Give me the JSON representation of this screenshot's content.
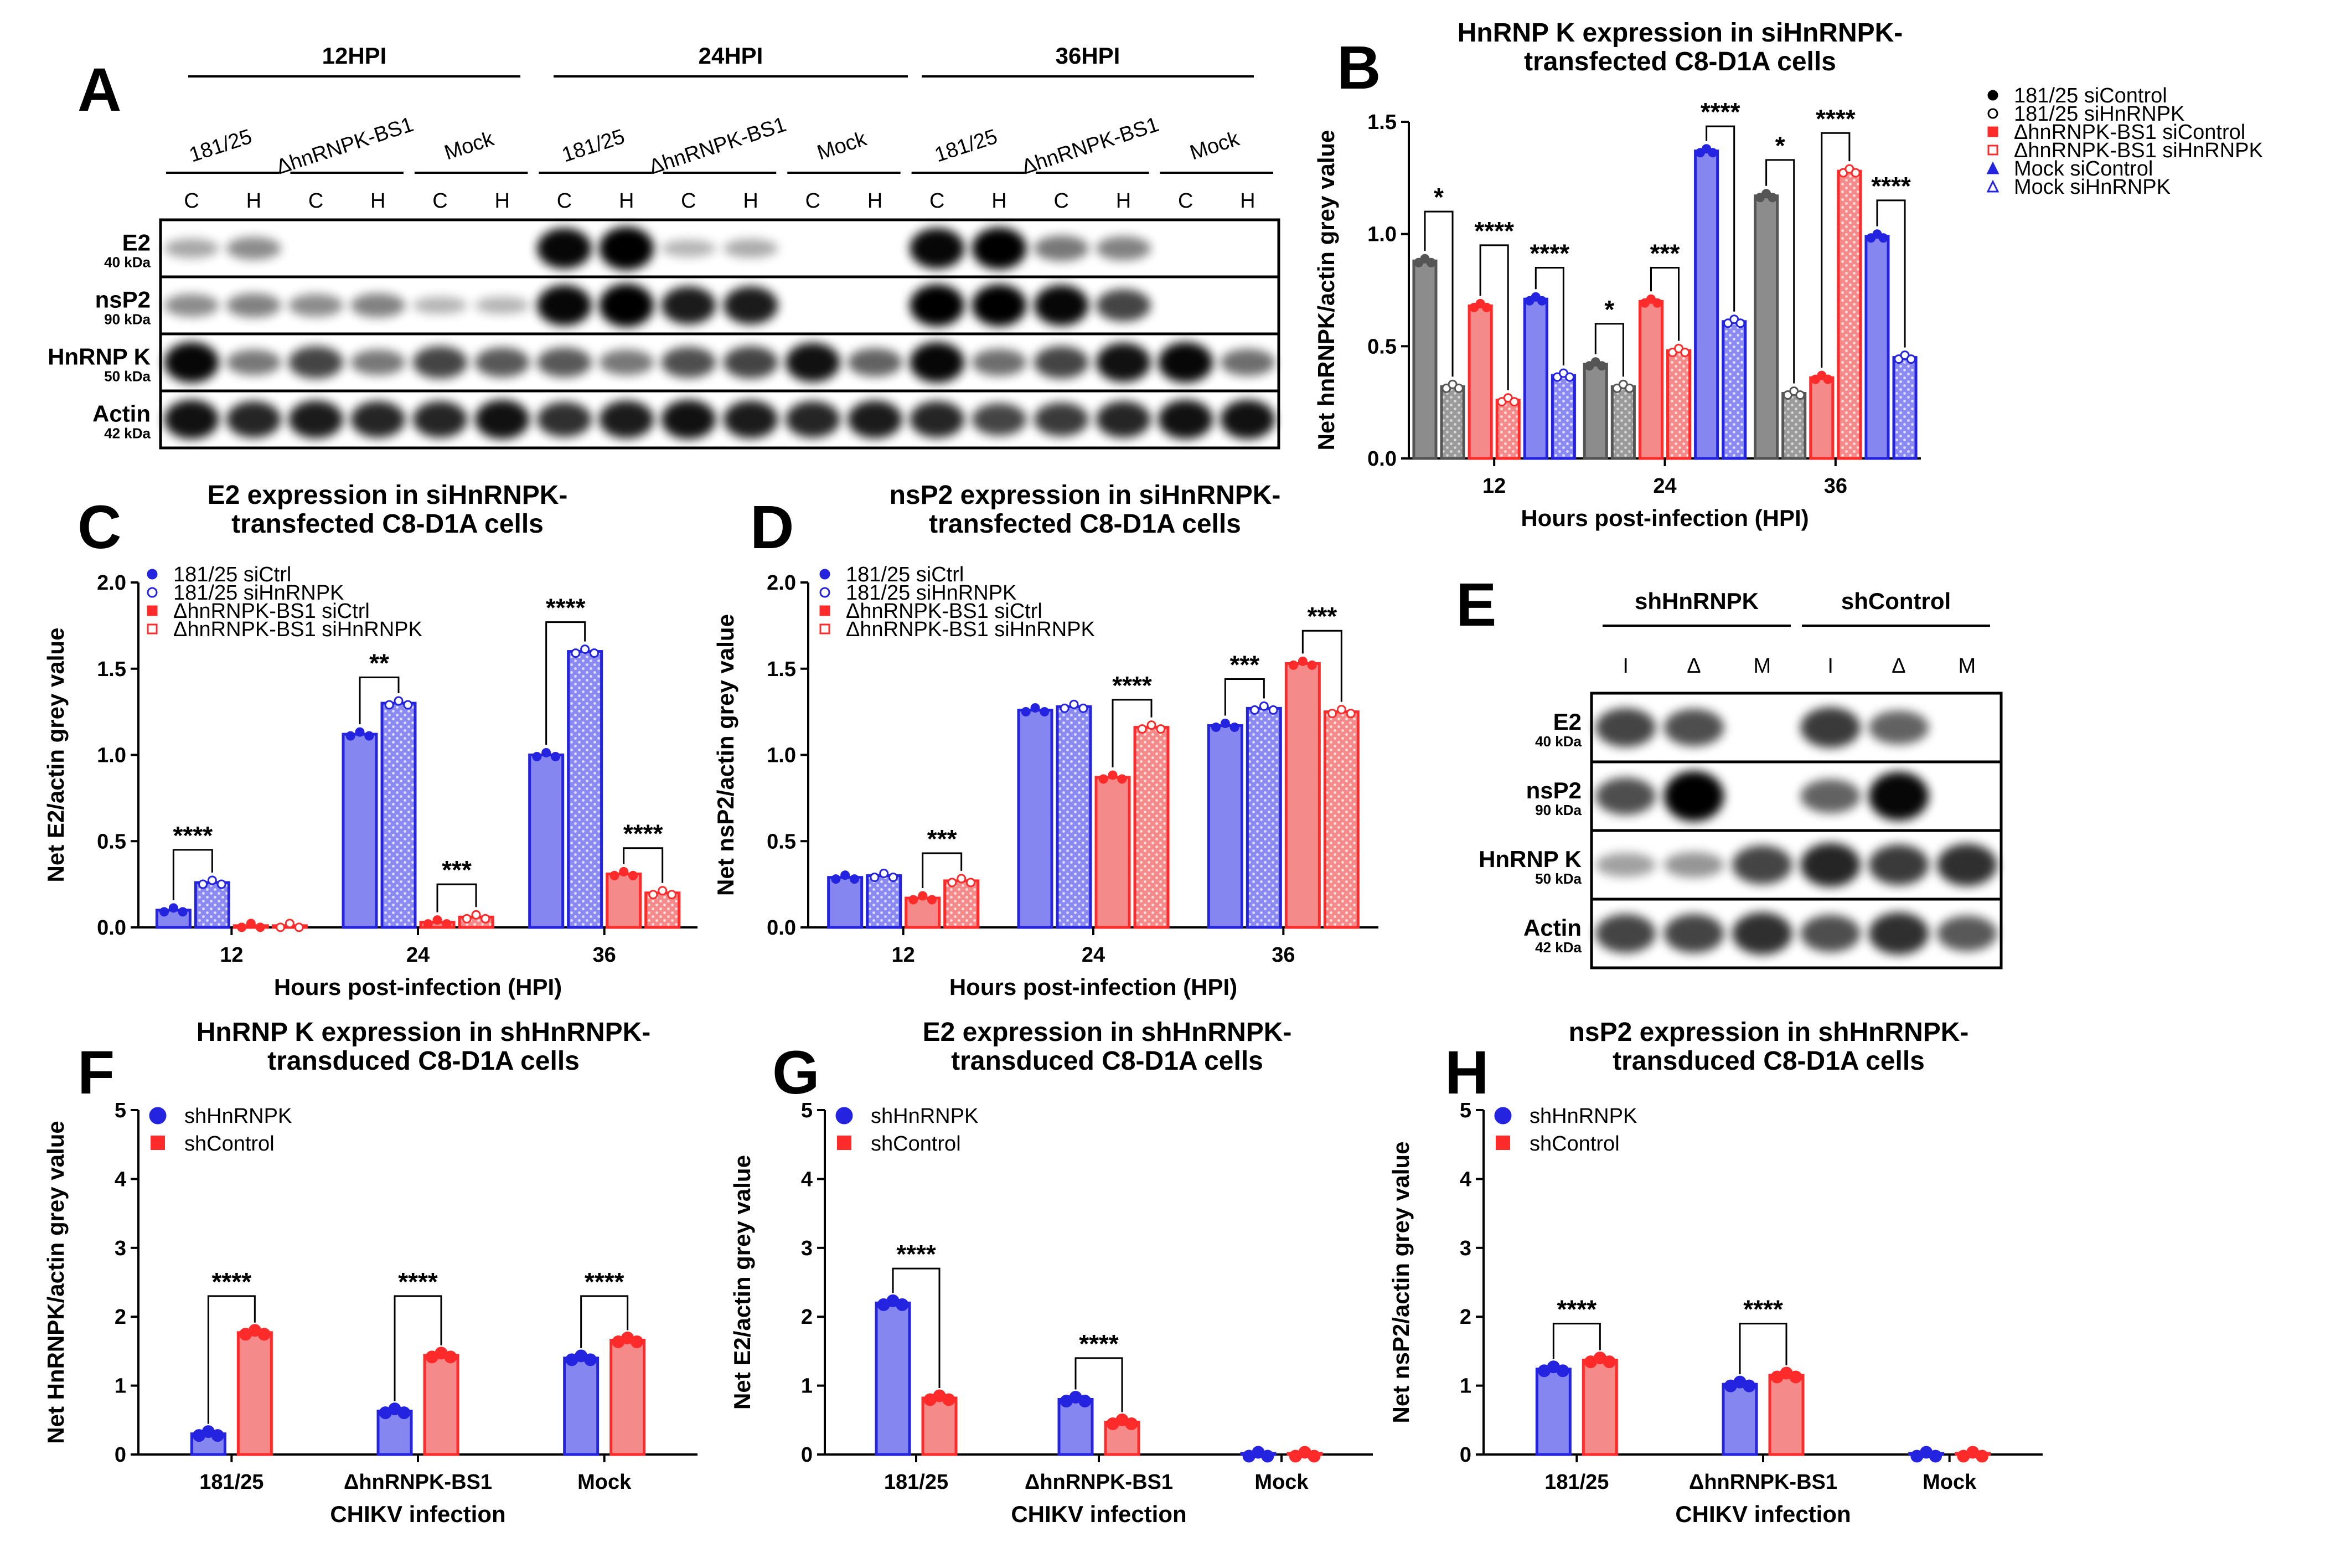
{
  "panel_letters": {
    "A": "A",
    "B": "B",
    "C": "C",
    "D": "D",
    "E": "E",
    "F": "F",
    "G": "G",
    "H": "H"
  },
  "blot_a": {
    "timepoints": [
      "12HPI",
      "24HPI",
      "36HPI"
    ],
    "groups": [
      "181/25",
      "ΔhnRNPK-BS1",
      "Mock"
    ],
    "lanes": [
      "C",
      "H"
    ],
    "rows": [
      {
        "name": "E2",
        "kda": "40 kDa"
      },
      {
        "name": "nsP2",
        "kda": "90 kDa"
      },
      {
        "name": "HnRNP K",
        "kda": "50 kDa"
      },
      {
        "name": "Actin",
        "kda": "42 kDa"
      }
    ],
    "band_intensity": {
      "E2": [
        0.12,
        0.25,
        0,
        0,
        0,
        0,
        0.9,
        1.0,
        0.05,
        0.1,
        0,
        0,
        0.9,
        0.95,
        0.35,
        0.3,
        0,
        0
      ],
      "nsP2": [
        0.25,
        0.3,
        0.25,
        0.3,
        0.05,
        0.05,
        0.9,
        1.0,
        0.8,
        0.8,
        0,
        0,
        0.95,
        0.95,
        0.9,
        0.6,
        0,
        0
      ],
      "HnRNP K": [
        0.9,
        0.35,
        0.6,
        0.35,
        0.6,
        0.5,
        0.5,
        0.35,
        0.55,
        0.6,
        0.85,
        0.45,
        0.9,
        0.4,
        0.6,
        0.85,
        0.9,
        0.4
      ],
      "Actin": [
        0.85,
        0.75,
        0.8,
        0.75,
        0.75,
        0.85,
        0.7,
        0.8,
        0.85,
        0.8,
        0.75,
        0.8,
        0.75,
        0.6,
        0.65,
        0.75,
        0.85,
        0.85
      ]
    }
  },
  "blot_e": {
    "groups": [
      "shHnRNPK",
      "shControl"
    ],
    "lanes": [
      "I",
      "Δ",
      "M"
    ],
    "rows": [
      {
        "name": "E2",
        "kda": "40 kDa"
      },
      {
        "name": "nsP2",
        "kda": "90 kDa"
      },
      {
        "name": "HnRNP K",
        "kda": "50 kDa"
      },
      {
        "name": "Actin",
        "kda": "42 kDa"
      }
    ],
    "band_intensity": {
      "E2": [
        0.6,
        0.55,
        0,
        0.65,
        0.45,
        0
      ],
      "nsP2": [
        0.55,
        0.95,
        0,
        0.45,
        0.9,
        0
      ],
      "HnRNP K": [
        0.15,
        0.2,
        0.6,
        0.75,
        0.65,
        0.7
      ],
      "Actin": [
        0.6,
        0.6,
        0.7,
        0.55,
        0.7,
        0.5
      ]
    }
  },
  "chart_data": [
    {
      "id": "B",
      "type": "bar",
      "title": [
        "HnRNP K expression in siHnRNPK-",
        "transfected C8-D1A cells"
      ],
      "xlabel": "Hours post-infection (HPI)",
      "ylabel": "Net hnRNPK/actin grey value",
      "categories": [
        "12",
        "24",
        "36"
      ],
      "ylim": [
        0,
        1.5
      ],
      "yticks": [
        0.0,
        0.5,
        1.0,
        1.5
      ],
      "tick_decimals": 1,
      "legend_position": "right",
      "series": [
        {
          "name": "181/25 siControl",
          "values": [
            0.88,
            0.42,
            1.17
          ],
          "color": "#555555",
          "pattern": false
        },
        {
          "name": "181/25 siHnRNPK",
          "values": [
            0.32,
            0.32,
            0.29
          ],
          "color": "#555555",
          "pattern": true
        },
        {
          "name": "ΔhnRNPK-BS1 siControl",
          "values": [
            0.68,
            0.7,
            0.36
          ],
          "color": "#ff2b2b",
          "pattern": false
        },
        {
          "name": "ΔhnRNPK-BS1 siHnRNPK",
          "values": [
            0.26,
            0.48,
            1.28
          ],
          "color": "#ff2b2b",
          "pattern": true
        },
        {
          "name": "Mock siControl",
          "values": [
            0.71,
            1.37,
            0.99
          ],
          "color": "#2424e0",
          "pattern": false
        },
        {
          "name": "Mock siHnRNPK",
          "values": [
            0.37,
            0.61,
            0.45
          ],
          "color": "#2424e0",
          "pattern": true
        }
      ],
      "comparisons": [
        {
          "cat": 0,
          "a": 0,
          "b": 1,
          "label": "*",
          "y": 1.1
        },
        {
          "cat": 0,
          "a": 2,
          "b": 3,
          "label": "****",
          "y": 0.95
        },
        {
          "cat": 0,
          "a": 4,
          "b": 5,
          "label": "****",
          "y": 0.85
        },
        {
          "cat": 1,
          "a": 0,
          "b": 1,
          "label": "*",
          "y": 0.6
        },
        {
          "cat": 1,
          "a": 2,
          "b": 3,
          "label": "***",
          "y": 0.85
        },
        {
          "cat": 1,
          "a": 4,
          "b": 5,
          "label": "****",
          "y": 1.48
        },
        {
          "cat": 2,
          "a": 0,
          "b": 1,
          "label": "*",
          "y": 1.33
        },
        {
          "cat": 2,
          "a": 2,
          "b": 3,
          "label": "****",
          "y": 1.45
        },
        {
          "cat": 2,
          "a": 4,
          "b": 5,
          "label": "****",
          "y": 1.15
        }
      ]
    },
    {
      "id": "C",
      "type": "bar",
      "title": [
        "E2 expression in siHnRNPK-",
        "transfected C8-D1A cells"
      ],
      "xlabel": "Hours post-infection (HPI)",
      "ylabel": "Net E2/actin grey value",
      "categories": [
        "12",
        "24",
        "36"
      ],
      "ylim": [
        0,
        2.0
      ],
      "yticks": [
        0.0,
        0.5,
        1.0,
        1.5,
        2.0
      ],
      "tick_decimals": 1,
      "legend_position": "top-left",
      "series": [
        {
          "name": "181/25 siCtrl",
          "values": [
            0.1,
            1.12,
            1.0
          ],
          "color": "#2424e0",
          "pattern": false
        },
        {
          "name": "181/25 siHnRNPK",
          "values": [
            0.26,
            1.3,
            1.6
          ],
          "color": "#2424e0",
          "pattern": true
        },
        {
          "name": "ΔhnRNPK-BS1 siCtrl",
          "values": [
            0.01,
            0.03,
            0.31
          ],
          "color": "#ff2b2b",
          "pattern": false
        },
        {
          "name": "ΔhnRNPK-BS1 siHnRNPK",
          "values": [
            0.01,
            0.06,
            0.2
          ],
          "color": "#ff2b2b",
          "pattern": true
        }
      ],
      "comparisons": [
        {
          "cat": 0,
          "a": 0,
          "b": 1,
          "label": "****",
          "y": 0.45
        },
        {
          "cat": 1,
          "a": 0,
          "b": 1,
          "label": "**",
          "y": 1.45
        },
        {
          "cat": 1,
          "a": 2,
          "b": 3,
          "label": "***",
          "y": 0.25
        },
        {
          "cat": 2,
          "a": 0,
          "b": 1,
          "label": "****",
          "y": 1.77
        },
        {
          "cat": 2,
          "a": 2,
          "b": 3,
          "label": "****",
          "y": 0.46
        }
      ]
    },
    {
      "id": "D",
      "type": "bar",
      "title": [
        "nsP2 expression in siHnRNPK-",
        "transfected C8-D1A cells"
      ],
      "xlabel": "Hours post-infection (HPI)",
      "ylabel": "Net nsP2/actin grey value",
      "categories": [
        "12",
        "24",
        "36"
      ],
      "ylim": [
        0,
        2.0
      ],
      "yticks": [
        0.0,
        0.5,
        1.0,
        1.5,
        2.0
      ],
      "tick_decimals": 1,
      "legend_position": "top-left",
      "series": [
        {
          "name": "181/25 siCtrl",
          "values": [
            0.29,
            1.26,
            1.17
          ],
          "color": "#2424e0",
          "pattern": false
        },
        {
          "name": "181/25 siHnRNPK",
          "values": [
            0.3,
            1.28,
            1.27
          ],
          "color": "#2424e0",
          "pattern": true
        },
        {
          "name": "ΔhnRNPK-BS1 siCtrl",
          "values": [
            0.17,
            0.87,
            1.53
          ],
          "color": "#ff2b2b",
          "pattern": false
        },
        {
          "name": "ΔhnRNPK-BS1 siHnRNPK",
          "values": [
            0.27,
            1.16,
            1.25
          ],
          "color": "#ff2b2b",
          "pattern": true
        }
      ],
      "comparisons": [
        {
          "cat": 0,
          "a": 2,
          "b": 3,
          "label": "***",
          "y": 0.43
        },
        {
          "cat": 1,
          "a": 2,
          "b": 3,
          "label": "****",
          "y": 1.32
        },
        {
          "cat": 2,
          "a": 0,
          "b": 1,
          "label": "***",
          "y": 1.44
        },
        {
          "cat": 2,
          "a": 2,
          "b": 3,
          "label": "***",
          "y": 1.72
        }
      ]
    },
    {
      "id": "F",
      "type": "bar",
      "title": [
        "HnRNP K expression in shHnRNPK-",
        "transduced C8-D1A cells"
      ],
      "xlabel": "CHIKV infection",
      "ylabel": "Net HnRNPK/actin grey value",
      "categories": [
        "181/25",
        "ΔhnRNPK-BS1",
        "Mock"
      ],
      "ylim": [
        0,
        5
      ],
      "yticks": [
        0,
        1,
        2,
        3,
        4,
        5
      ],
      "tick_decimals": 0,
      "legend_position": "top-left",
      "series": [
        {
          "name": "shHnRNPK",
          "values": [
            0.3,
            0.63,
            1.4
          ],
          "color": "#2424e0",
          "pattern": false
        },
        {
          "name": "shControl",
          "values": [
            1.77,
            1.44,
            1.66
          ],
          "color": "#ff2b2b",
          "pattern": false
        }
      ],
      "comparisons": [
        {
          "cat": 0,
          "a": 0,
          "b": 1,
          "label": "****",
          "y": 2.3
        },
        {
          "cat": 1,
          "a": 0,
          "b": 1,
          "label": "****",
          "y": 2.3
        },
        {
          "cat": 2,
          "a": 0,
          "b": 1,
          "label": "****",
          "y": 2.3
        }
      ]
    },
    {
      "id": "G",
      "type": "bar",
      "title": [
        "E2 expression in shHnRNPK-",
        "transduced C8-D1A cells"
      ],
      "xlabel": "CHIKV infection",
      "ylabel": "Net E2/actin grey value",
      "categories": [
        "181/25",
        "ΔhnRNPK-BS1",
        "Mock"
      ],
      "ylim": [
        0,
        5
      ],
      "yticks": [
        0,
        1,
        2,
        3,
        4,
        5
      ],
      "tick_decimals": 0,
      "legend_position": "top-left",
      "series": [
        {
          "name": "shHnRNPK",
          "values": [
            2.2,
            0.8,
            0.0
          ],
          "color": "#2424e0",
          "pattern": false
        },
        {
          "name": "shControl",
          "values": [
            0.82,
            0.47,
            0.0
          ],
          "color": "#ff2b2b",
          "pattern": false
        }
      ],
      "comparisons": [
        {
          "cat": 0,
          "a": 0,
          "b": 1,
          "label": "****",
          "y": 2.7
        },
        {
          "cat": 1,
          "a": 0,
          "b": 1,
          "label": "****",
          "y": 1.4
        }
      ]
    },
    {
      "id": "H",
      "type": "bar",
      "title": [
        "nsP2 expression in shHnRNPK-",
        "transduced C8-D1A cells"
      ],
      "xlabel": "CHIKV infection",
      "ylabel": "Net nsP2/actin grey value",
      "categories": [
        "181/25",
        "ΔhnRNPK-BS1",
        "Mock"
      ],
      "ylim": [
        0,
        5
      ],
      "yticks": [
        0,
        1,
        2,
        3,
        4,
        5
      ],
      "tick_decimals": 0,
      "legend_position": "top-left",
      "series": [
        {
          "name": "shHnRNPK",
          "values": [
            1.24,
            1.02,
            0.0
          ],
          "color": "#2424e0",
          "pattern": false
        },
        {
          "name": "shControl",
          "values": [
            1.37,
            1.15,
            0.0
          ],
          "color": "#ff2b2b",
          "pattern": false
        }
      ],
      "comparisons": [
        {
          "cat": 0,
          "a": 0,
          "b": 1,
          "label": "****",
          "y": 1.9
        },
        {
          "cat": 1,
          "a": 0,
          "b": 1,
          "label": "****",
          "y": 1.9
        }
      ]
    }
  ]
}
